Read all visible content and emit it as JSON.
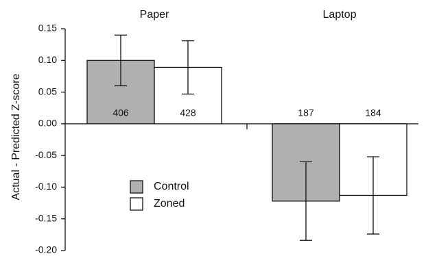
{
  "chart_data": {
    "type": "bar",
    "y_label": "Actual - Predicted Z-score",
    "categories": [
      "Paper",
      "Laptop"
    ],
    "series": [
      {
        "name": "Control",
        "color": "#b0b0b0",
        "values": [
          0.1,
          -0.122
        ],
        "errors": [
          0.04,
          0.062
        ],
        "n": [
          406,
          187
        ]
      },
      {
        "name": "Zoned",
        "color": "#ffffff",
        "values": [
          0.089,
          -0.113
        ],
        "errors": [
          0.042,
          0.061
        ],
        "n": [
          428,
          184
        ]
      }
    ],
    "ylim": [
      -0.2,
      0.15
    ],
    "yticks": [
      0.15,
      {
        "value": 0.1,
        "label": "0.10"
      },
      0.05,
      {
        "value": 0,
        "label": "0.00"
      },
      -0.05,
      {
        "value": -0.1,
        "label": "-0.10"
      },
      -0.15,
      {
        "value": -0.2,
        "label": "-0.20"
      }
    ]
  }
}
